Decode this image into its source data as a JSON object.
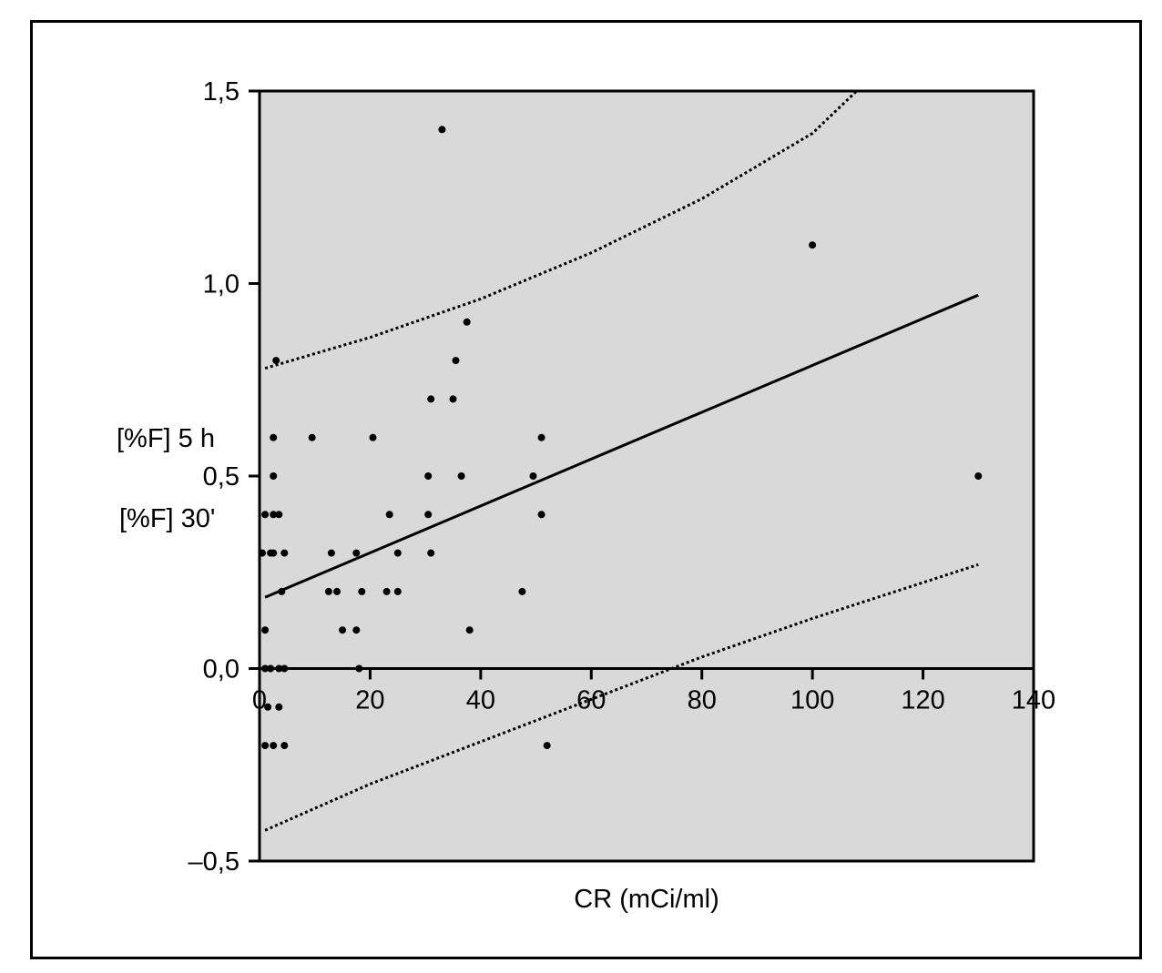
{
  "chart_data": {
    "type": "scatter",
    "title": "",
    "xlabel": "CR (mCi/ml)",
    "ylabel_lines": [
      "[%F] 5 h",
      "[%F] 30'"
    ],
    "xlim": [
      0,
      140
    ],
    "ylim": [
      -0.5,
      1.5
    ],
    "x_ticks": [
      0,
      20,
      40,
      60,
      80,
      100,
      120,
      140
    ],
    "x_tick_labels": [
      "0",
      "20",
      "40",
      "60",
      "80",
      "100",
      "120",
      "140"
    ],
    "y_ticks": [
      -0.5,
      0.0,
      0.5,
      1.0,
      1.5
    ],
    "y_tick_labels": [
      "–0,5",
      "0,0",
      "0,5",
      "1,0",
      "1,5"
    ],
    "grid": false,
    "plot_background": "#d9d9d9",
    "point_color": "#000000",
    "zero_line": true,
    "points": [
      [
        33,
        1.4
      ],
      [
        100,
        1.1
      ],
      [
        37.5,
        0.9
      ],
      [
        35.5,
        0.8
      ],
      [
        3,
        0.8
      ],
      [
        31,
        0.7
      ],
      [
        35,
        0.7
      ],
      [
        2.5,
        0.6
      ],
      [
        9.5,
        0.6
      ],
      [
        20.5,
        0.6
      ],
      [
        51,
        0.6
      ],
      [
        2.5,
        0.5
      ],
      [
        30.5,
        0.5
      ],
      [
        36.5,
        0.5
      ],
      [
        49.5,
        0.5
      ],
      [
        130,
        0.5
      ],
      [
        1,
        0.4
      ],
      [
        2.5,
        0.4
      ],
      [
        3.5,
        0.4
      ],
      [
        23.5,
        0.4
      ],
      [
        30.5,
        0.4
      ],
      [
        51,
        0.4
      ],
      [
        0.5,
        0.3
      ],
      [
        2,
        0.3
      ],
      [
        2.5,
        0.3
      ],
      [
        4.5,
        0.3
      ],
      [
        13,
        0.3
      ],
      [
        17.5,
        0.3
      ],
      [
        25,
        0.3
      ],
      [
        31,
        0.3
      ],
      [
        4,
        0.2
      ],
      [
        12.5,
        0.2
      ],
      [
        14,
        0.2
      ],
      [
        18.5,
        0.2
      ],
      [
        23,
        0.2
      ],
      [
        25,
        0.2
      ],
      [
        47.5,
        0.2
      ],
      [
        1,
        0.1
      ],
      [
        15,
        0.1
      ],
      [
        17.5,
        0.1
      ],
      [
        38,
        0.1
      ],
      [
        1,
        0.0
      ],
      [
        2,
        0.0
      ],
      [
        3.5,
        0.0
      ],
      [
        4.5,
        0.0
      ],
      [
        18,
        0.0
      ],
      [
        1.5,
        -0.1
      ],
      [
        3.5,
        -0.1
      ],
      [
        1,
        -0.2
      ],
      [
        2.5,
        -0.2
      ],
      [
        4.5,
        -0.2
      ],
      [
        52,
        -0.2
      ]
    ],
    "regression_line": {
      "x": [
        1,
        130
      ],
      "y": [
        0.185,
        0.97
      ]
    },
    "confidence_band": {
      "upper": {
        "x": [
          1,
          20,
          40,
          60,
          80,
          100,
          108
        ],
        "y": [
          0.78,
          0.86,
          0.96,
          1.08,
          1.22,
          1.39,
          1.5
        ]
      },
      "lower": {
        "x": [
          1,
          20,
          40,
          60,
          80,
          100,
          130
        ],
        "y": [
          -0.42,
          -0.3,
          -0.19,
          -0.08,
          0.03,
          0.13,
          0.27
        ]
      }
    }
  }
}
